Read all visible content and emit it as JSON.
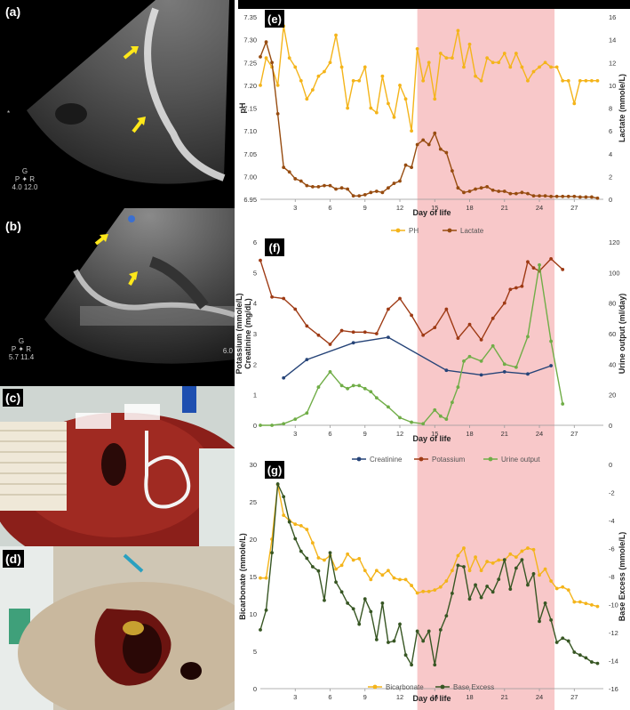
{
  "panels": {
    "a": {
      "label": "(a)",
      "probe_text_left": "P",
      "probe_text_right": "R",
      "probe_sub": "4.0  12.0",
      "probe_top": "G"
    },
    "b": {
      "label": "(b)",
      "probe_text_left": "P",
      "probe_text_right": "R",
      "probe_sub": "5.7  11.4",
      "probe_top": "G",
      "depth": "6.0"
    },
    "c": {
      "label": "(c)"
    },
    "d": {
      "label": "(d)"
    }
  },
  "colors": {
    "highlight": "#f8c5c6",
    "ph": "#f4b41a",
    "lactate": "#974c10",
    "creatinine": "#264478",
    "potassium": "#9e3a14",
    "urine": "#70ad47",
    "bicarbonate": "#f4b41a",
    "base_excess": "#375623",
    "arrow": "#ffe81a"
  },
  "chart_data": [
    {
      "type": "line",
      "panel_label": "(e)",
      "xlabel": "Day of life",
      "x_ticks": [
        "3",
        "6",
        "9",
        "12",
        "15",
        "18",
        "21",
        "24",
        "27"
      ],
      "highlight_days": [
        13.5,
        25.3
      ],
      "left_axis": {
        "label": "pH",
        "ylim": [
          6.95,
          7.35
        ],
        "ticks": [
          "6.95",
          "7.00",
          "7.05",
          "7.10",
          "7.15",
          "7.20",
          "7.25",
          "7.30",
          "7.35"
        ]
      },
      "right_axis": {
        "label": "Lactate (mmole/L)",
        "ylim": [
          0,
          16
        ],
        "ticks": [
          "0",
          "2",
          "4",
          "6",
          "8",
          "10",
          "12",
          "14",
          "16"
        ]
      },
      "legend": [
        "PH",
        "Lactate"
      ],
      "series": [
        {
          "name": "PH",
          "axis": "left",
          "x": [
            0,
            0.5,
            1,
            1.5,
            2,
            2.5,
            3,
            3.5,
            4,
            4.5,
            5,
            5.5,
            6,
            6.5,
            7,
            7.5,
            8,
            8.5,
            9,
            9.5,
            10,
            10.5,
            11,
            11.5,
            12,
            12.5,
            13,
            13.5,
            14,
            14.5,
            15,
            15.5,
            16,
            16.5,
            17,
            17.5,
            18,
            18.5,
            19,
            19.5,
            20,
            20.5,
            21,
            21.5,
            22,
            22.5,
            23,
            23.5,
            24,
            24.5,
            25,
            25.5,
            26,
            26.5,
            27,
            27.5,
            28,
            28.5,
            29
          ],
          "values": [
            7.2,
            7.26,
            7.24,
            7.2,
            7.33,
            7.26,
            7.24,
            7.21,
            7.17,
            7.19,
            7.22,
            7.23,
            7.25,
            7.31,
            7.24,
            7.15,
            7.21,
            7.21,
            7.24,
            7.15,
            7.14,
            7.22,
            7.16,
            7.13,
            7.2,
            7.17,
            7.1,
            7.28,
            7.21,
            7.25,
            7.17,
            7.27,
            7.26,
            7.26,
            7.32,
            7.24,
            7.29,
            7.22,
            7.21,
            7.26,
            7.25,
            7.25,
            7.27,
            7.24,
            7.27,
            7.24,
            7.21,
            7.23,
            7.24,
            7.25,
            7.24,
            7.24,
            7.21,
            7.21,
            7.16,
            7.21,
            7.21,
            7.21,
            7.21
          ]
        },
        {
          "name": "Lactate",
          "axis": "right",
          "x": [
            0,
            0.5,
            1,
            1.5,
            2,
            2.5,
            3,
            3.5,
            4,
            4.5,
            5,
            5.5,
            6,
            6.5,
            7,
            7.5,
            8,
            8.5,
            9,
            9.5,
            10,
            10.5,
            11,
            11.5,
            12,
            12.5,
            13,
            13.5,
            14,
            14.5,
            15,
            15.5,
            16,
            16.5,
            17,
            17.5,
            18,
            18.5,
            19,
            19.5,
            20,
            20.5,
            21,
            21.5,
            22,
            22.5,
            23,
            23.5,
            24,
            24.5,
            25,
            25.5,
            26,
            26.5,
            27,
            27.5,
            28,
            28.5,
            29
          ],
          "values": [
            12.5,
            13.8,
            12.0,
            7.5,
            2.8,
            2.4,
            1.8,
            1.6,
            1.2,
            1.1,
            1.1,
            1.2,
            1.2,
            0.9,
            1.0,
            0.9,
            0.3,
            0.3,
            0.4,
            0.6,
            0.7,
            0.6,
            1.0,
            1.4,
            1.6,
            3.0,
            2.8,
            4.8,
            5.2,
            4.8,
            5.8,
            4.4,
            4.1,
            2.5,
            1.0,
            0.6,
            0.7,
            0.9,
            1.0,
            1.1,
            0.8,
            0.7,
            0.7,
            0.5,
            0.5,
            0.6,
            0.5,
            0.3,
            0.3,
            0.3,
            0.25,
            0.25,
            0.25,
            0.25,
            0.25,
            0.2,
            0.2,
            0.2,
            0.1
          ]
        }
      ]
    },
    {
      "type": "line",
      "panel_label": "(f)",
      "xlabel": "Day of life",
      "x_ticks": [
        "3",
        "6",
        "9",
        "12",
        "15",
        "18",
        "21",
        "24",
        "27"
      ],
      "highlight_days": [
        13.5,
        25.3
      ],
      "left_axis": {
        "label": "Potassium (mmole/L)\nCreatinine (mg/dL)",
        "label_lines": [
          "Potassium (mmole/L)",
          "Creatinine (mg/dL)"
        ],
        "ylim": [
          0,
          6
        ],
        "ticks": [
          "0",
          "1",
          "2",
          "3",
          "4",
          "5",
          "6"
        ]
      },
      "right_axis": {
        "label": "Urine output (ml/day)",
        "ylim": [
          0,
          120
        ],
        "ticks": [
          "0",
          "20",
          "40",
          "60",
          "80",
          "100",
          "120"
        ]
      },
      "legend": [
        "Creatinine",
        "Potassium",
        "Urine output"
      ],
      "series": [
        {
          "name": "Creatinine",
          "axis": "left",
          "x": [
            2,
            4,
            8,
            11,
            16,
            19,
            21,
            23,
            25
          ],
          "values": [
            1.55,
            2.15,
            2.7,
            2.88,
            1.8,
            1.65,
            1.75,
            1.68,
            1.95
          ]
        },
        {
          "name": "Potassium",
          "axis": "left",
          "x": [
            0,
            1,
            2,
            3,
            4,
            5,
            6,
            7,
            8,
            9,
            10,
            11,
            12,
            13,
            14,
            15,
            16,
            17,
            18,
            19,
            20,
            21,
            21.5,
            22,
            22.5,
            23,
            23.5,
            24,
            25,
            26
          ],
          "values": [
            5.4,
            4.2,
            4.15,
            3.8,
            3.25,
            2.95,
            2.65,
            3.1,
            3.05,
            3.05,
            3.0,
            3.8,
            4.15,
            3.6,
            2.95,
            3.2,
            3.8,
            2.85,
            3.3,
            2.8,
            3.5,
            4.0,
            4.45,
            4.5,
            4.55,
            5.35,
            5.15,
            5.05,
            5.45,
            5.1
          ]
        },
        {
          "name": "Urine output",
          "axis": "right",
          "x": [
            0,
            1,
            2,
            3,
            4,
            5,
            6,
            7,
            7.5,
            8,
            8.5,
            9,
            9.5,
            10,
            11,
            12,
            13,
            14,
            15,
            15.5,
            16,
            16.5,
            17,
            17.5,
            18,
            19,
            20,
            21,
            22,
            23,
            24,
            25,
            26
          ],
          "values": [
            0,
            0,
            1,
            4,
            8,
            25,
            35,
            26,
            24,
            26,
            26,
            24,
            22,
            18,
            12,
            5,
            2,
            1,
            10,
            6,
            4,
            15,
            25,
            42,
            45,
            42,
            52,
            40,
            38,
            58,
            105,
            55,
            14
          ]
        }
      ]
    },
    {
      "type": "line",
      "panel_label": "(g)",
      "xlabel": "Day of life",
      "x_ticks": [
        "3",
        "6",
        "9",
        "12",
        "15",
        "18",
        "21",
        "24",
        "27"
      ],
      "highlight_days": [
        13.5,
        25.3
      ],
      "left_axis": {
        "label": "Bicarbonate (mmole/L)",
        "ylim": [
          0,
          30
        ],
        "ticks": [
          "0",
          "5",
          "10",
          "15",
          "20",
          "25",
          "30"
        ]
      },
      "right_axis": {
        "label": "Base Excess (mmole/L)",
        "ylim": [
          -16,
          0
        ],
        "ticks": [
          "-16",
          "-14",
          "-12",
          "-10",
          "-8",
          "-6",
          "-4",
          "-2",
          "0"
        ]
      },
      "legend": [
        "Bicarbonate",
        "Base Excess"
      ],
      "series": [
        {
          "name": "Bicarbonate",
          "axis": "left",
          "x": [
            0,
            0.5,
            1,
            1.5,
            2,
            2.5,
            3,
            3.5,
            4,
            4.5,
            5,
            5.5,
            6,
            6.5,
            7,
            7.5,
            8,
            8.5,
            9,
            9.5,
            10,
            10.5,
            11,
            11.5,
            12,
            12.5,
            13,
            13.5,
            14,
            14.5,
            15,
            15.5,
            16,
            16.5,
            17,
            17.5,
            18,
            18.5,
            19,
            19.5,
            20,
            20.5,
            21,
            21.5,
            22,
            22.5,
            23,
            23.5,
            24,
            24.5,
            25,
            25.5,
            26,
            26.5,
            27,
            27.5,
            28,
            28.5,
            29
          ],
          "values": [
            14.8,
            14.8,
            20,
            27.3,
            23.2,
            22.5,
            22,
            21.8,
            21.3,
            19.5,
            17.5,
            17.2,
            17.8,
            16,
            16.5,
            18,
            17.2,
            17.4,
            15.8,
            14.6,
            15.8,
            15.2,
            15.8,
            14.8,
            14.6,
            14.6,
            13.8,
            12.8,
            13,
            13,
            13.2,
            13.6,
            14.4,
            15.8,
            17.8,
            18.8,
            15.8,
            17.6,
            15.8,
            17,
            16.8,
            17.2,
            17.2,
            18,
            17.6,
            18.4,
            18.8,
            18.6,
            15.2,
            16,
            14.4,
            13.4,
            13.6,
            13.2,
            11.6,
            11.6,
            11.4,
            11.2,
            11
          ]
        },
        {
          "name": "Base Excess",
          "axis": "right",
          "x": [
            0,
            0.5,
            1,
            1.5,
            2,
            2.5,
            3,
            3.5,
            4,
            4.5,
            5,
            5.5,
            6,
            6.5,
            7,
            7.5,
            8,
            8.5,
            9,
            9.5,
            10,
            10.5,
            11,
            11.5,
            12,
            12.5,
            13,
            13.5,
            14,
            14.5,
            15,
            15.5,
            16,
            16.5,
            17,
            17.5,
            18,
            18.5,
            19,
            19.5,
            20,
            20.5,
            21,
            21.5,
            22,
            22.5,
            23,
            23.5,
            24,
            24.5,
            25,
            25.5,
            26,
            26.5,
            27,
            27.5,
            28,
            28.5,
            29
          ],
          "values": [
            -11.8,
            -10.4,
            -6.3,
            -1.4,
            -2.3,
            -4.1,
            -5.3,
            -6.2,
            -6.7,
            -7.3,
            -7.6,
            -9.7,
            -6.3,
            -8.4,
            -9.1,
            -9.9,
            -10.3,
            -11.4,
            -9.6,
            -10.5,
            -12.5,
            -9.9,
            -12.7,
            -12.6,
            -11.4,
            -13.6,
            -14.3,
            -11.9,
            -12.6,
            -11.9,
            -14.3,
            -11.8,
            -10.8,
            -9.2,
            -7.2,
            -7.3,
            -9.6,
            -8.6,
            -9.5,
            -8.7,
            -9.1,
            -8.2,
            -6.8,
            -8.9,
            -7.4,
            -6.8,
            -8.6,
            -7.8,
            -11.2,
            -9.9,
            -11.1,
            -12.7,
            -12.4,
            -12.6,
            -13.4,
            -13.6,
            -13.8,
            -14.1,
            -14.2
          ]
        }
      ]
    }
  ]
}
